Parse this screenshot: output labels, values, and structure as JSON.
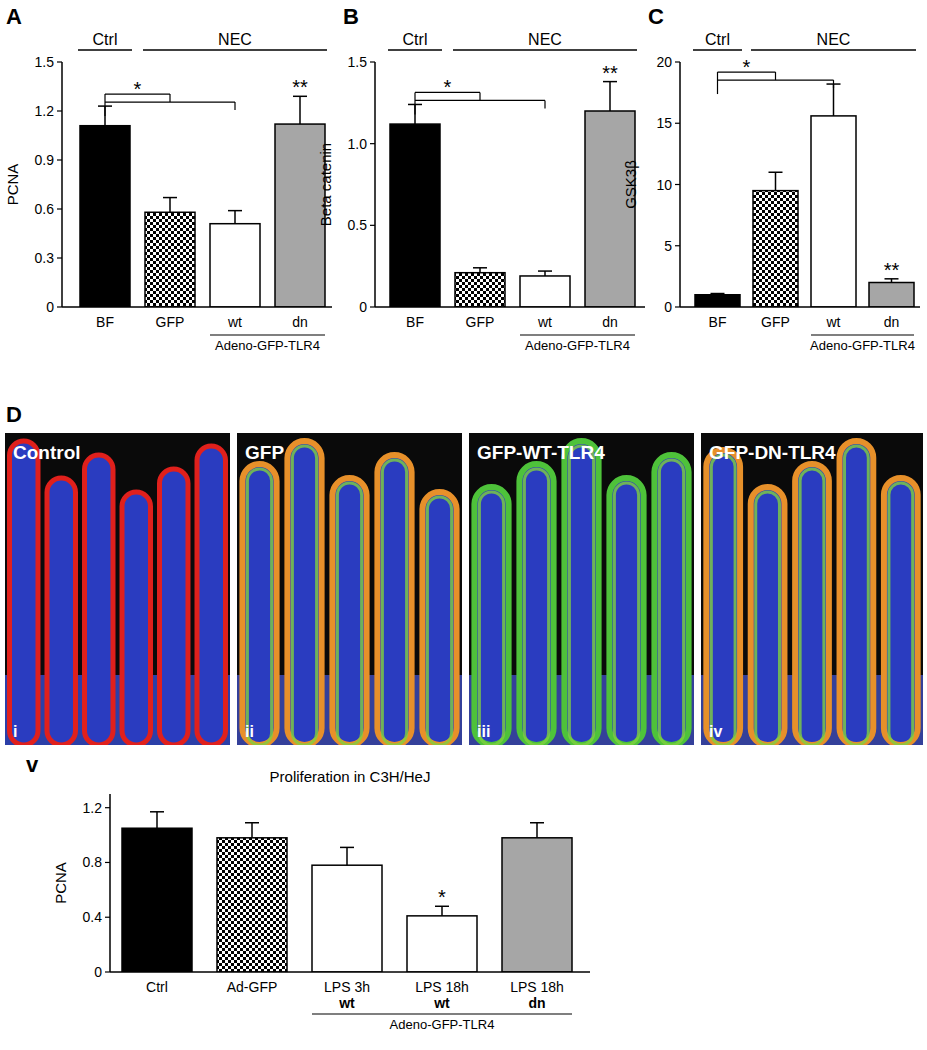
{
  "chart_data": [
    {
      "type": "bar",
      "panel": "A",
      "y_label": "PCNA",
      "categories": [
        "BF",
        "GFP",
        "wt",
        "dn"
      ],
      "values": [
        1.11,
        0.58,
        0.51,
        1.12
      ],
      "errors": [
        0.12,
        0.09,
        0.08,
        0.17
      ],
      "colors": [
        "#000000",
        "checker",
        "#ffffff",
        "#a6a6a6"
      ],
      "ylim": [
        0,
        1.5
      ],
      "yticks": [
        0,
        0.3,
        0.6,
        0.9,
        1.2,
        1.5
      ],
      "groups": [
        {
          "label": "Ctrl",
          "span": [
            0,
            0
          ]
        },
        {
          "label": "NEC",
          "span": [
            1,
            3
          ]
        }
      ],
      "bottom_groups": [
        {
          "label": "Adeno-GFP-TLR4",
          "span": [
            2,
            3
          ]
        }
      ],
      "significance": [
        {
          "label": "*",
          "bracket": [
            0,
            1,
            2
          ]
        },
        {
          "label": "**",
          "at": 3
        }
      ]
    },
    {
      "type": "bar",
      "panel": "B",
      "y_label": "Beta catenin",
      "categories": [
        "BF",
        "GFP",
        "wt",
        "dn"
      ],
      "values": [
        1.12,
        0.21,
        0.19,
        1.2
      ],
      "errors": [
        0.12,
        0.03,
        0.03,
        0.18
      ],
      "colors": [
        "#000000",
        "checker",
        "#ffffff",
        "#a6a6a6"
      ],
      "ylim": [
        0,
        1.5
      ],
      "yticks": [
        0,
        0.5,
        {
          "value": 1,
          "label": "1.0"
        },
        1.5
      ],
      "groups": [
        {
          "label": "Ctrl",
          "span": [
            0,
            0
          ]
        },
        {
          "label": "NEC",
          "span": [
            1,
            3
          ]
        }
      ],
      "bottom_groups": [
        {
          "label": "Adeno-GFP-TLR4",
          "span": [
            2,
            3
          ]
        }
      ],
      "significance": [
        {
          "label": "*",
          "bracket": [
            0,
            1,
            2
          ]
        },
        {
          "label": "**",
          "at": 3
        }
      ]
    },
    {
      "type": "bar",
      "panel": "C",
      "y_label": "GSK3β",
      "categories": [
        "BF",
        "GFP",
        "wt",
        "dn"
      ],
      "values": [
        1.0,
        9.5,
        15.6,
        2.0
      ],
      "errors": [
        0.1,
        1.5,
        2.6,
        0.3
      ],
      "colors": [
        "#000000",
        "checker",
        "#ffffff",
        "#a6a6a6"
      ],
      "ylim": [
        0,
        20
      ],
      "yticks": [
        0,
        5,
        10,
        15,
        20
      ],
      "groups": [
        {
          "label": "Ctrl",
          "span": [
            0,
            0
          ]
        },
        {
          "label": "NEC",
          "span": [
            1,
            3
          ]
        }
      ],
      "bottom_groups": [
        {
          "label": "Adeno-GFP-TLR4",
          "span": [
            2,
            3
          ]
        }
      ],
      "significance": [
        {
          "label": "*",
          "bracket": [
            0,
            1,
            2
          ]
        },
        {
          "label": "**",
          "at": 3
        }
      ]
    },
    {
      "type": "bar",
      "panel": "v",
      "title": "Proliferation in C3H/HeJ",
      "y_label": "PCNA",
      "categories": [
        "Ctrl",
        "Ad-GFP",
        "LPS 3h",
        "LPS 18h",
        "LPS 18h"
      ],
      "category_sublabels": [
        null,
        null,
        "wt",
        "wt",
        "dn"
      ],
      "values": [
        1.05,
        0.98,
        0.78,
        0.41,
        0.98
      ],
      "errors": [
        0.12,
        0.11,
        0.13,
        0.07,
        0.11
      ],
      "colors": [
        "#000000",
        "checker",
        "#ffffff",
        "#ffffff",
        "#a6a6a6"
      ],
      "ylim": [
        0,
        1.3
      ],
      "yticks": [
        0,
        0.4,
        0.8,
        1.2
      ],
      "bottom_groups": [
        {
          "label": "Adeno-GFP-TLR4",
          "span": [
            2,
            4
          ]
        }
      ],
      "significance": [
        {
          "label": "*",
          "at": 3
        }
      ]
    }
  ],
  "micrographs": {
    "panel": "D",
    "images": [
      {
        "label": "Control",
        "numeral": "i"
      },
      {
        "label": "GFP",
        "numeral": "ii"
      },
      {
        "label": "GFP-WT-TLR4",
        "numeral": "iii"
      },
      {
        "label": "GFP-DN-TLR4",
        "numeral": "iv"
      }
    ]
  }
}
